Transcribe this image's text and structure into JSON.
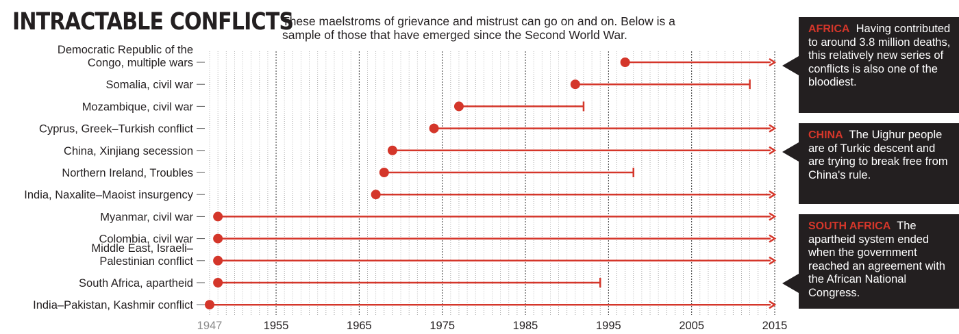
{
  "header": {
    "title": "INTRACTABLE CONFLICTS",
    "subtitle": "These maelstroms of grievance and mistrust can go on and on. Below is a sample of those that have emerged since the Second World War."
  },
  "colors": {
    "accent": "#d4362a",
    "text": "#231f20",
    "callout_bg": "#231f20",
    "grid": "#777777",
    "muted_tick": "#8a8a8a"
  },
  "chart_data": {
    "type": "timeline",
    "title": "INTRACTABLE CONFLICTS",
    "xlim": [
      1947,
      2015
    ],
    "x_ticks": [
      "1947",
      "1955",
      "1965",
      "1975",
      "1985",
      "1995",
      "2005",
      "2015"
    ],
    "grid": true,
    "series": [
      {
        "label_lines": [
          "Democratic Republic of the",
          "Congo, multiple wars"
        ],
        "start": 1997,
        "end": 2015,
        "ongoing": true
      },
      {
        "label_lines": [
          "Somalia, civil war"
        ],
        "start": 1991,
        "end": 2012,
        "ongoing": false
      },
      {
        "label_lines": [
          "Mozambique, civil war"
        ],
        "start": 1977,
        "end": 1992,
        "ongoing": false
      },
      {
        "label_lines": [
          "Cyprus, Greek–Turkish conflict"
        ],
        "start": 1974,
        "end": 2015,
        "ongoing": true
      },
      {
        "label_lines": [
          "China, Xinjiang secession"
        ],
        "start": 1969,
        "end": 2015,
        "ongoing": true
      },
      {
        "label_lines": [
          "Northern Ireland, Troubles"
        ],
        "start": 1968,
        "end": 1998,
        "ongoing": false
      },
      {
        "label_lines": [
          "India, Naxalite–Maoist insurgency"
        ],
        "start": 1967,
        "end": 2015,
        "ongoing": true
      },
      {
        "label_lines": [
          "Myanmar, civil war"
        ],
        "start": 1948,
        "end": 2015,
        "ongoing": true
      },
      {
        "label_lines": [
          "Colombia, civil war"
        ],
        "start": 1948,
        "end": 2015,
        "ongoing": true
      },
      {
        "label_lines": [
          "Middle East, Israeli–",
          "Palestinian conflict"
        ],
        "start": 1948,
        "end": 2015,
        "ongoing": true
      },
      {
        "label_lines": [
          "South Africa, apartheid"
        ],
        "start": 1948,
        "end": 1994,
        "ongoing": false
      },
      {
        "label_lines": [
          "India–Pakistan, Kashmir conflict"
        ],
        "start": 1947,
        "end": 2015,
        "ongoing": true
      }
    ]
  },
  "callouts": [
    {
      "title": "AFRICA",
      "text": "Having contributed to around 3.8 million deaths, this relatively new series of conflicts is also one of the bloodiest."
    },
    {
      "title": "CHINA",
      "text": "The Uighur people are of Turkic descent and are trying to break free from China's rule."
    },
    {
      "title": "SOUTH AFRICA",
      "text": "The apartheid system ended when the government reached an agreement with the African National Congress."
    }
  ]
}
